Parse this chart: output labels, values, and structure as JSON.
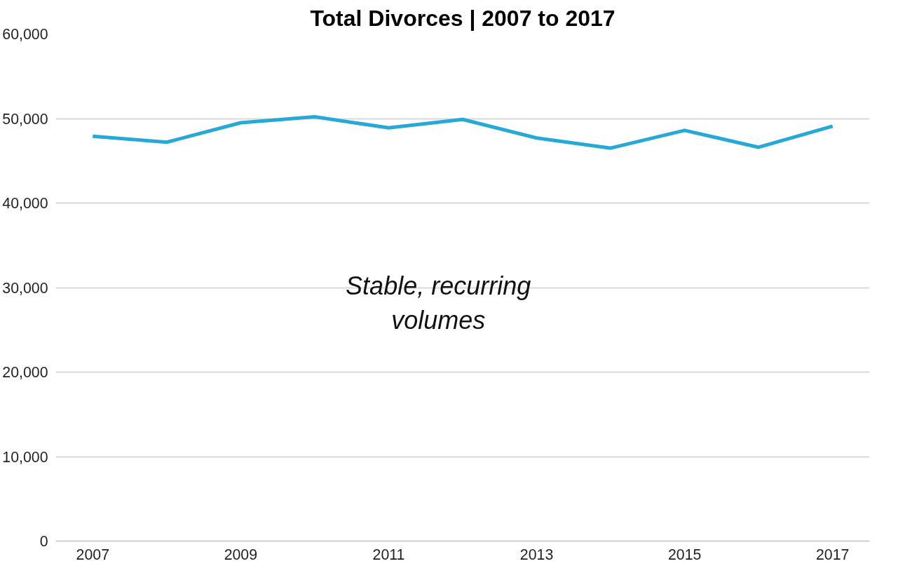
{
  "chart_data": {
    "type": "line",
    "title": "Total Divorces | 2007 to 2017",
    "x": [
      2007,
      2008,
      2009,
      2010,
      2011,
      2012,
      2013,
      2014,
      2015,
      2016,
      2017
    ],
    "series": [
      {
        "color": "#27a9d8",
        "values": [
          47900,
          47200,
          49500,
          50200,
          48900,
          49900,
          47700,
          46500,
          48600,
          46600,
          49100
        ]
      }
    ],
    "xlim": [
      2006.5,
      2017.5
    ],
    "xticks": [
      2007,
      2009,
      2011,
      2013,
      2015,
      2017
    ],
    "ylim": [
      0,
      60000
    ],
    "yticks": [
      {
        "value": 0,
        "label": "0"
      },
      {
        "value": 10000,
        "label": "10,000"
      },
      {
        "value": 20000,
        "label": "20,000"
      },
      {
        "value": 30000,
        "label": "30,000"
      },
      {
        "value": 40000,
        "label": "40,000"
      },
      {
        "value": 50000,
        "label": "50,000"
      },
      {
        "value": 60000,
        "label": "60,000"
      }
    ],
    "grid": "y",
    "marker": "none",
    "line_style": "solid",
    "annotations": [
      "Stable, recurring volumes"
    ]
  }
}
